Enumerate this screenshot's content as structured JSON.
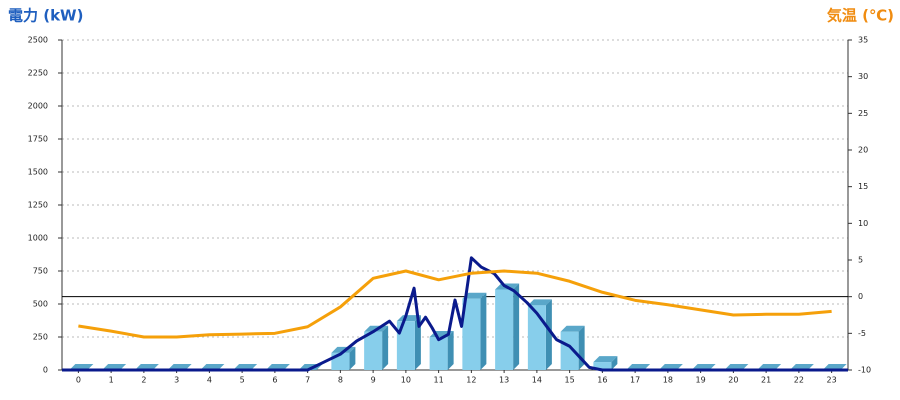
{
  "chart_data": {
    "type": "combo",
    "y_label": "電力 (kW)",
    "y2_label": "気温 (℃)",
    "y_label_color": "#1f5fbf",
    "y2_label_color": "#f08c10",
    "xlim": [
      -0.5,
      23.5
    ],
    "xticks": [
      0,
      1,
      2,
      3,
      4,
      5,
      6,
      7,
      8,
      9,
      10,
      11,
      12,
      13,
      14,
      15,
      16,
      17,
      18,
      19,
      20,
      21,
      22,
      23
    ],
    "ylim": [
      0,
      2500
    ],
    "yticks": [
      0,
      250,
      500,
      750,
      1000,
      1250,
      1500,
      1750,
      2000,
      2250,
      2500
    ],
    "y2lim": [
      -10,
      35
    ],
    "y2ticks": [
      -10,
      -5,
      0,
      5,
      10,
      15,
      20,
      25,
      30,
      35
    ],
    "grid": true,
    "series": [
      {
        "type": "bar",
        "color": "#87ceeb",
        "x": [
          0,
          1,
          2,
          3,
          4,
          5,
          6,
          7,
          8,
          9,
          10,
          11,
          12,
          13,
          14,
          15,
          16,
          17,
          18,
          19,
          20,
          21,
          22,
          23
        ],
        "values": [
          0,
          0,
          0,
          0,
          0,
          0,
          0,
          0,
          130,
          290,
          370,
          250,
          540,
          610,
          490,
          290,
          60,
          0,
          0,
          0,
          0,
          0,
          0,
          0
        ]
      },
      {
        "type": "line",
        "color": "#0a1a8c",
        "x": [
          -0.5,
          7,
          7.5,
          8,
          8.5,
          9,
          9.5,
          9.8,
          10,
          10.25,
          10.4,
          10.6,
          10.8,
          11,
          11.3,
          11.5,
          11.7,
          12,
          12.3,
          12.7,
          13,
          13.3,
          13.7,
          14,
          14.3,
          14.6,
          15,
          15.3,
          15.6,
          16,
          23.5
        ],
        "values": [
          0,
          0,
          60,
          120,
          220,
          290,
          370,
          280,
          410,
          620,
          330,
          400,
          320,
          230,
          270,
          530,
          330,
          850,
          780,
          730,
          640,
          600,
          510,
          430,
          330,
          230,
          180,
          100,
          20,
          0,
          0
        ]
      },
      {
        "type": "line",
        "color": "#f5a00a",
        "axis": "y2",
        "x": [
          0,
          1,
          2,
          3,
          4,
          5,
          6,
          7,
          8,
          9,
          10,
          11,
          12,
          13,
          14,
          15,
          16,
          17,
          18,
          19,
          20,
          21,
          22,
          23
        ],
        "values": [
          -4.0,
          -4.7,
          -5.5,
          -5.5,
          -5.2,
          -5.1,
          -5.0,
          -4.1,
          -1.4,
          2.5,
          3.5,
          2.3,
          3.2,
          3.5,
          3.2,
          2.1,
          0.6,
          -0.5,
          -1.1,
          -1.8,
          -2.5,
          -2.4,
          -2.4,
          -2.0
        ]
      }
    ]
  }
}
